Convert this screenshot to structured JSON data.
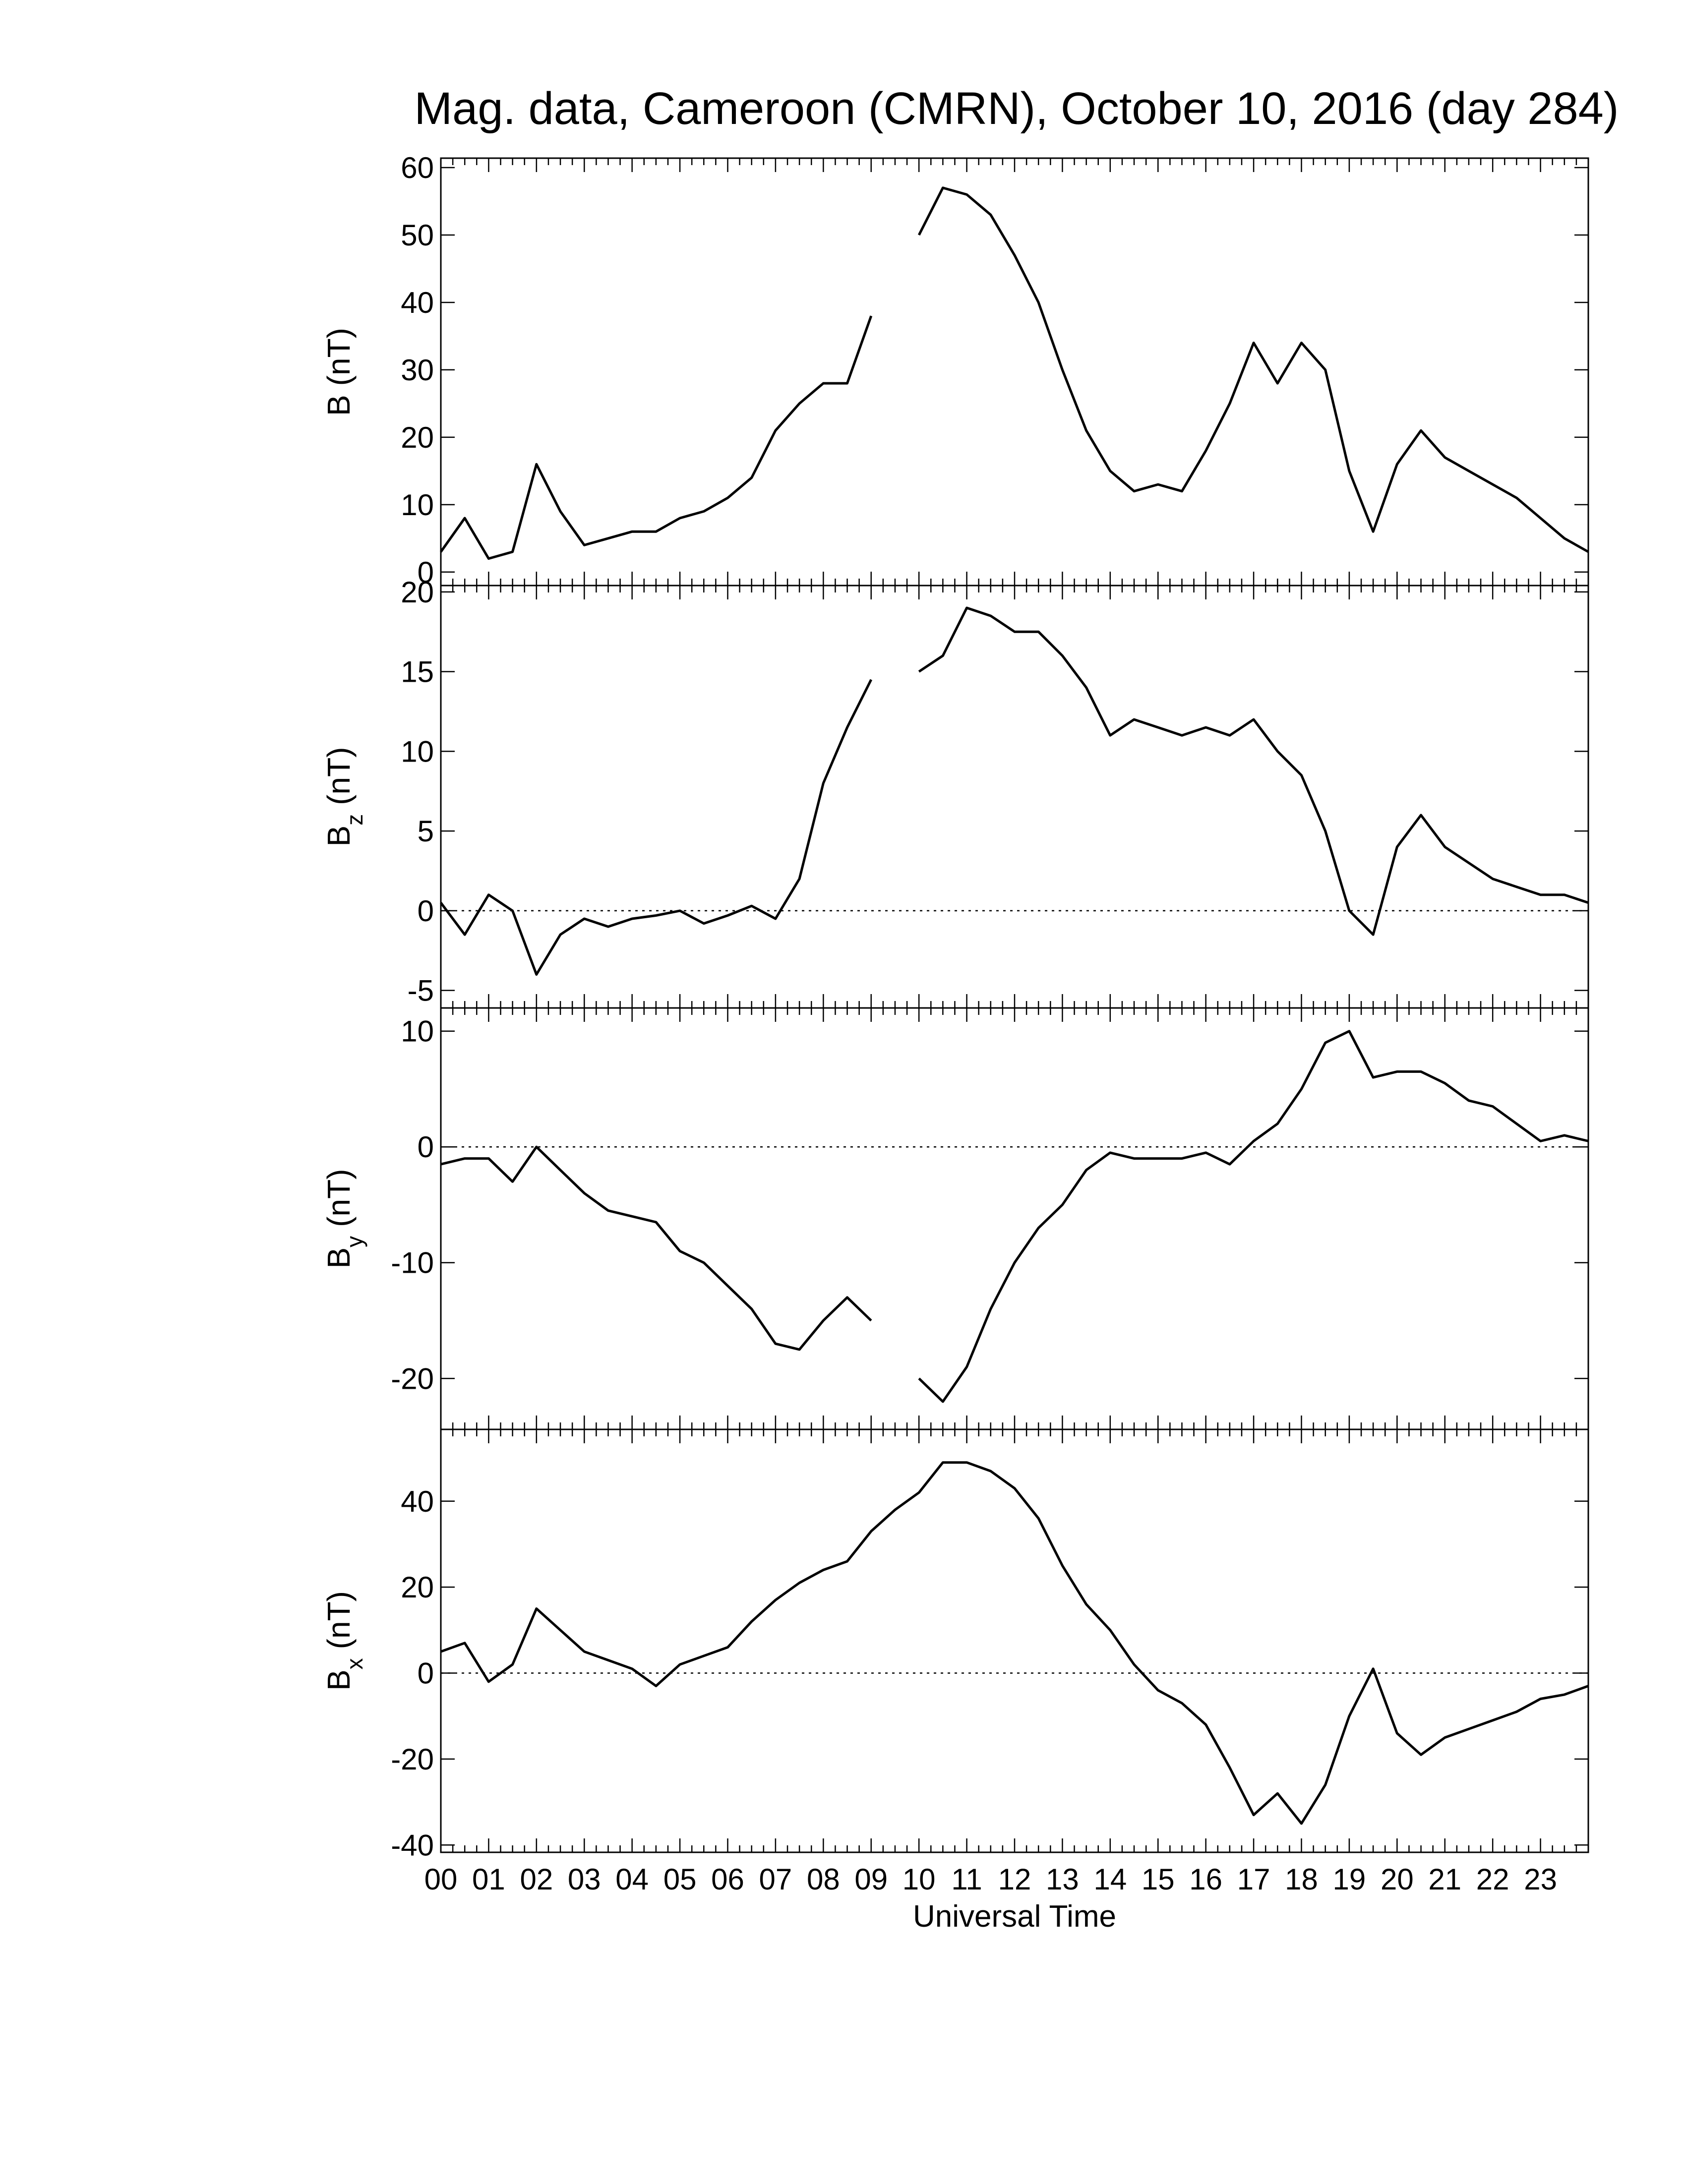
{
  "chart_data": [
    {
      "type": "line",
      "title": "Mag. data, Cameroon (CMRN), October 10, 2016 (day 284)",
      "ylabel": "B",
      "ylabel_unit": "(nT)",
      "x": [
        0,
        0.5,
        1,
        1.5,
        2,
        2.5,
        3,
        3.5,
        4,
        4.5,
        5,
        5.5,
        6,
        6.5,
        7,
        7.5,
        8,
        8.5,
        9,
        9.5,
        10,
        10.5,
        11,
        11.5,
        12,
        12.5,
        13,
        13.5,
        14,
        14.5,
        15,
        15.5,
        16,
        16.5,
        17,
        17.5,
        18,
        18.5,
        19,
        19.5,
        20,
        20.5,
        21,
        21.5,
        22,
        22.5,
        23,
        23.5,
        24
      ],
      "series": [
        {
          "color": "#000000",
          "values": [
            3,
            8,
            2,
            3,
            16,
            9,
            4,
            5,
            6,
            6,
            8,
            9,
            11,
            14,
            21,
            25,
            28,
            28,
            38,
            null,
            50,
            57,
            56,
            53,
            47,
            40,
            30,
            21,
            15,
            12,
            13,
            12,
            18,
            25,
            34,
            28,
            34,
            30,
            15,
            6,
            16,
            21,
            17,
            15,
            13,
            11,
            8,
            5,
            3
          ]
        }
      ],
      "xlim": [
        0,
        24
      ],
      "xticks": [
        0,
        1,
        2,
        3,
        4,
        5,
        6,
        7,
        8,
        9,
        10,
        11,
        12,
        13,
        14,
        15,
        16,
        17,
        18,
        19,
        20,
        21,
        22,
        23
      ],
      "ylim": [
        -2,
        61.4
      ],
      "yticks": [
        0,
        10,
        20,
        30,
        40,
        50,
        60
      ],
      "zero_line": false
    },
    {
      "type": "line",
      "ylabel": "B",
      "ylabel_sub": "z",
      "ylabel_unit": "(nT)",
      "x": [
        0,
        0.5,
        1,
        1.5,
        2,
        2.5,
        3,
        3.5,
        4,
        4.5,
        5,
        5.5,
        6,
        6.5,
        7,
        7.5,
        8,
        8.5,
        9,
        9.5,
        10,
        10.5,
        11,
        11.5,
        12,
        12.5,
        13,
        13.5,
        14,
        14.5,
        15,
        15.5,
        16,
        16.5,
        17,
        17.5,
        18,
        18.5,
        19,
        19.5,
        20,
        20.5,
        21,
        21.5,
        22,
        22.5,
        23,
        23.5,
        24
      ],
      "series": [
        {
          "color": "#000000",
          "values": [
            0.5,
            -1.5,
            1,
            0,
            -4,
            -1.5,
            -0.5,
            -1,
            -0.5,
            -0.3,
            0,
            -0.8,
            -0.3,
            0.3,
            -0.5,
            2,
            8,
            11.5,
            14.5,
            null,
            15,
            16,
            19,
            18.5,
            17.5,
            17.5,
            16,
            14,
            11,
            12,
            11.5,
            11,
            11.5,
            11,
            12,
            10,
            8.5,
            5,
            0,
            -1.5,
            4,
            6,
            4,
            3,
            2,
            1.5,
            1,
            1,
            0.5
          ]
        }
      ],
      "xlim": [
        0,
        24
      ],
      "xticks": [
        0,
        1,
        2,
        3,
        4,
        5,
        6,
        7,
        8,
        9,
        10,
        11,
        12,
        13,
        14,
        15,
        16,
        17,
        18,
        19,
        20,
        21,
        22,
        23
      ],
      "ylim": [
        -6.1,
        20.4
      ],
      "yticks": [
        -5,
        0,
        5,
        10,
        15,
        20
      ],
      "zero_line": true
    },
    {
      "type": "line",
      "ylabel": "B",
      "ylabel_sub": "y",
      "ylabel_unit": "(nT)",
      "x": [
        0,
        0.5,
        1,
        1.5,
        2,
        2.5,
        3,
        3.5,
        4,
        4.5,
        5,
        5.5,
        6,
        6.5,
        7,
        7.5,
        8,
        8.5,
        9,
        9.5,
        10,
        10.5,
        11,
        11.5,
        12,
        12.5,
        13,
        13.5,
        14,
        14.5,
        15,
        15.5,
        16,
        16.5,
        17,
        17.5,
        18,
        18.5,
        19,
        19.5,
        20,
        20.5,
        21,
        21.5,
        22,
        22.5,
        23,
        23.5,
        24
      ],
      "series": [
        {
          "color": "#000000",
          "values": [
            -1.5,
            -1,
            -1,
            -3,
            0,
            -2,
            -4,
            -5.5,
            -6,
            -6.5,
            -9,
            -10,
            -12,
            -14,
            -17,
            -17.5,
            -15,
            -13,
            -15,
            null,
            -20,
            -22,
            -19,
            -14,
            -10,
            -7,
            -5,
            -2,
            -0.5,
            -1,
            -1,
            -1,
            -0.5,
            -1.5,
            0.5,
            2,
            5,
            9,
            10,
            6,
            6.5,
            6.5,
            5.5,
            4,
            3.5,
            2,
            0.5,
            1,
            0.5
          ]
        }
      ],
      "xlim": [
        0,
        24
      ],
      "xticks": [
        0,
        1,
        2,
        3,
        4,
        5,
        6,
        7,
        8,
        9,
        10,
        11,
        12,
        13,
        14,
        15,
        16,
        17,
        18,
        19,
        20,
        21,
        22,
        23
      ],
      "ylim": [
        -24.4,
        12
      ],
      "yticks": [
        -20,
        -10,
        0,
        10
      ],
      "zero_line": true
    },
    {
      "type": "line",
      "ylabel": "B",
      "ylabel_sub": "x",
      "ylabel_unit": "(nT)",
      "xlabel": "Universal Time",
      "x": [
        0,
        0.5,
        1,
        1.5,
        2,
        2.5,
        3,
        3.5,
        4,
        4.5,
        5,
        5.5,
        6,
        6.5,
        7,
        7.5,
        8,
        8.5,
        9,
        9.5,
        10,
        10.5,
        11,
        11.5,
        12,
        12.5,
        13,
        13.5,
        14,
        14.5,
        15,
        15.5,
        16,
        16.5,
        17,
        17.5,
        18,
        18.5,
        19,
        19.5,
        20,
        20.5,
        21,
        21.5,
        22,
        22.5,
        23,
        23.5,
        24
      ],
      "series": [
        {
          "color": "#000000",
          "values": [
            5,
            7,
            -2,
            2,
            15,
            10,
            5,
            3,
            1,
            -3,
            2,
            4,
            6,
            12,
            17,
            21,
            24,
            26,
            33,
            38,
            42,
            49,
            49,
            47,
            43,
            36,
            25,
            16,
            10,
            2,
            -4,
            -7,
            -12,
            -22,
            -33,
            -28,
            -35,
            -26,
            -10,
            1,
            -14,
            -19,
            -15,
            -13,
            -11,
            -9,
            -6,
            -5,
            -3
          ]
        }
      ],
      "xlim": [
        0,
        24
      ],
      "xticks": [
        {
          "value": 0,
          "label": "00"
        },
        {
          "value": 1,
          "label": "01"
        },
        {
          "value": 2,
          "label": "02"
        },
        {
          "value": 3,
          "label": "03"
        },
        {
          "value": 4,
          "label": "04"
        },
        {
          "value": 5,
          "label": "05"
        },
        {
          "value": 6,
          "label": "06"
        },
        {
          "value": 7,
          "label": "07"
        },
        {
          "value": 8,
          "label": "08"
        },
        {
          "value": 9,
          "label": "09"
        },
        {
          "value": 10,
          "label": "10"
        },
        {
          "value": 11,
          "label": "11"
        },
        {
          "value": 12,
          "label": "12"
        },
        {
          "value": 13,
          "label": "13"
        },
        {
          "value": 14,
          "label": "14"
        },
        {
          "value": 15,
          "label": "15"
        },
        {
          "value": 16,
          "label": "16"
        },
        {
          "value": 17,
          "label": "17"
        },
        {
          "value": 18,
          "label": "18"
        },
        {
          "value": 19,
          "label": "19"
        },
        {
          "value": 20,
          "label": "20"
        },
        {
          "value": 21,
          "label": "21"
        },
        {
          "value": 22,
          "label": "22"
        },
        {
          "value": 23,
          "label": "23"
        }
      ],
      "ylim": [
        -41.7,
        56.7
      ],
      "yticks": [
        -40,
        -20,
        0,
        20,
        40
      ],
      "zero_line": true
    }
  ]
}
